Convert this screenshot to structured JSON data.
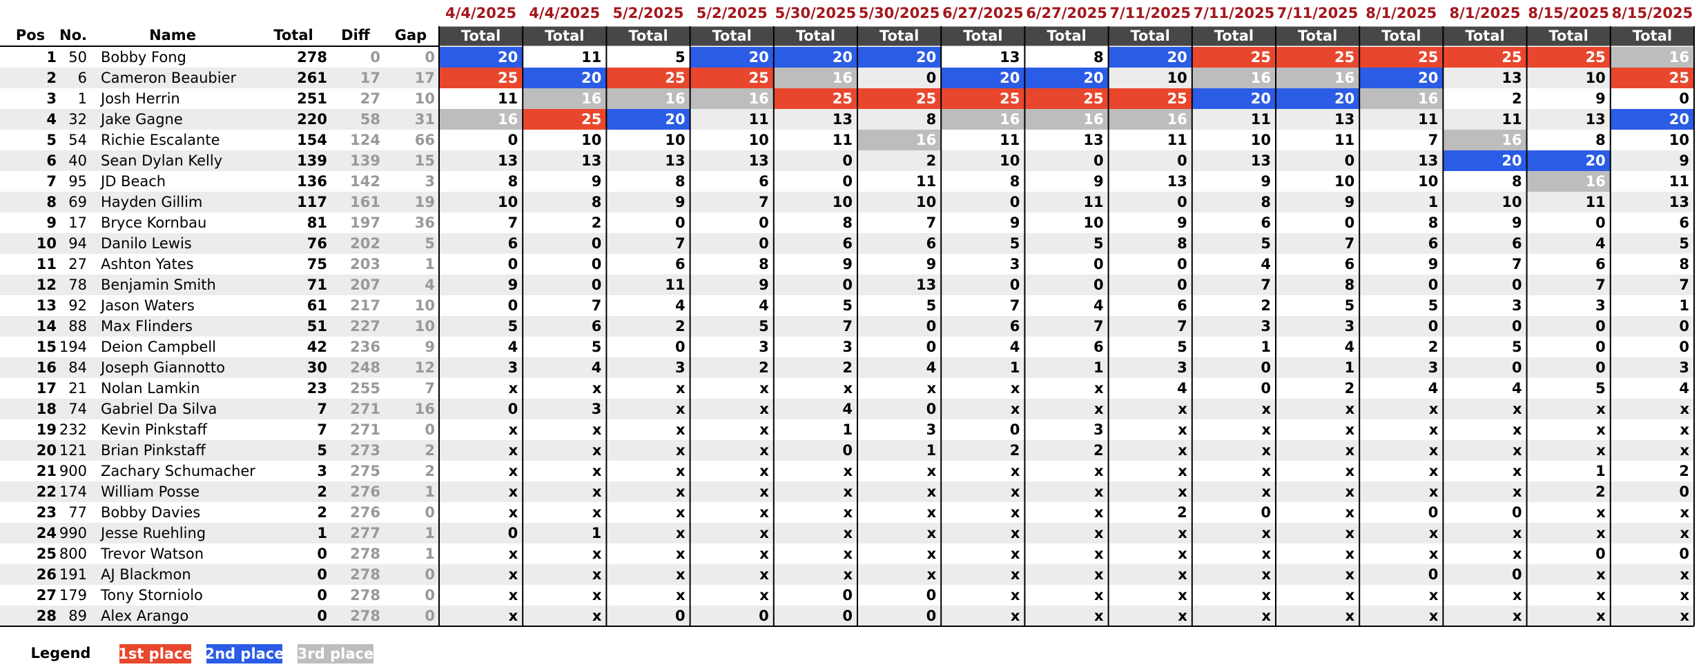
{
  "columns": {
    "pos": "Pos",
    "no": "No.",
    "name": "Name",
    "total": "Total",
    "diff": "Diff",
    "gap": "Gap"
  },
  "races": [
    {
      "date": "4/4/2025",
      "label": "Total"
    },
    {
      "date": "4/4/2025",
      "label": "Total"
    },
    {
      "date": "5/2/2025",
      "label": "Total"
    },
    {
      "date": "5/2/2025",
      "label": "Total"
    },
    {
      "date": "5/30/2025",
      "label": "Total"
    },
    {
      "date": "5/30/2025",
      "label": "Total"
    },
    {
      "date": "6/27/2025",
      "label": "Total"
    },
    {
      "date": "6/27/2025",
      "label": "Total"
    },
    {
      "date": "7/11/2025",
      "label": "Total"
    },
    {
      "date": "7/11/2025",
      "label": "Total"
    },
    {
      "date": "7/11/2025",
      "label": "Total"
    },
    {
      "date": "8/1/2025",
      "label": "Total"
    },
    {
      "date": "8/1/2025",
      "label": "Total"
    },
    {
      "date": "8/15/2025",
      "label": "Total"
    },
    {
      "date": "8/15/2025",
      "label": "Total"
    }
  ],
  "rows": [
    {
      "pos": 1,
      "no": 50,
      "name": "Bobby Fong",
      "total": 278,
      "diff": 0,
      "gap": 0,
      "results": [
        {
          "value": 20,
          "legend": 1
        },
        11,
        5,
        {
          "value": 20,
          "legend": 1
        },
        {
          "value": 20,
          "legend": 1
        },
        {
          "value": 20,
          "legend": 1
        },
        13,
        8,
        {
          "value": 20,
          "legend": 1
        },
        {
          "value": 25,
          "legend": 0
        },
        {
          "value": 25,
          "legend": 0
        },
        {
          "value": 25,
          "legend": 0
        },
        {
          "value": 25,
          "legend": 0
        },
        {
          "value": 25,
          "legend": 0
        },
        {
          "value": 16,
          "legend": 2
        }
      ]
    },
    {
      "pos": 2,
      "no": 6,
      "name": "Cameron Beaubier",
      "total": 261,
      "diff": 17,
      "gap": 17,
      "results": [
        {
          "value": 25,
          "legend": 0
        },
        {
          "value": 20,
          "legend": 1
        },
        {
          "value": 25,
          "legend": 0
        },
        {
          "value": 25,
          "legend": 0
        },
        {
          "value": 16,
          "legend": 2
        },
        0,
        {
          "value": 20,
          "legend": 1
        },
        {
          "value": 20,
          "legend": 1
        },
        10,
        {
          "value": 16,
          "legend": 2
        },
        {
          "value": 16,
          "legend": 2
        },
        {
          "value": 20,
          "legend": 1
        },
        13,
        10,
        {
          "value": 25,
          "legend": 0
        }
      ]
    },
    {
      "pos": 3,
      "no": 1,
      "name": "Josh Herrin",
      "total": 251,
      "diff": 27,
      "gap": 10,
      "results": [
        11,
        {
          "value": 16,
          "legend": 2
        },
        {
          "value": 16,
          "legend": 2
        },
        {
          "value": 16,
          "legend": 2
        },
        {
          "value": 25,
          "legend": 0
        },
        {
          "value": 25,
          "legend": 0
        },
        {
          "value": 25,
          "legend": 0
        },
        {
          "value": 25,
          "legend": 0
        },
        {
          "value": 25,
          "legend": 0
        },
        {
          "value": 20,
          "legend": 1
        },
        {
          "value": 20,
          "legend": 1
        },
        {
          "value": 16,
          "legend": 2
        },
        2,
        9,
        0
      ]
    },
    {
      "pos": 4,
      "no": 32,
      "name": "Jake Gagne",
      "total": 220,
      "diff": 58,
      "gap": 31,
      "results": [
        {
          "value": 16,
          "legend": 2
        },
        {
          "value": 25,
          "legend": 0
        },
        {
          "value": 20,
          "legend": 1
        },
        11,
        13,
        8,
        {
          "value": 16,
          "legend": 2
        },
        {
          "value": 16,
          "legend": 2
        },
        {
          "value": 16,
          "legend": 2
        },
        11,
        13,
        11,
        11,
        13,
        {
          "value": 20,
          "legend": 1
        }
      ]
    },
    {
      "pos": 5,
      "no": 54,
      "name": "Richie Escalante",
      "total": 154,
      "diff": 124,
      "gap": 66,
      "results": [
        0,
        10,
        10,
        10,
        11,
        {
          "value": 16,
          "legend": 2
        },
        11,
        13,
        11,
        10,
        11,
        7,
        {
          "value": 16,
          "legend": 2
        },
        8,
        10
      ]
    },
    {
      "pos": 6,
      "no": 40,
      "name": "Sean Dylan Kelly",
      "total": 139,
      "diff": 139,
      "gap": 15,
      "results": [
        13,
        13,
        13,
        13,
        0,
        2,
        10,
        0,
        0,
        13,
        0,
        13,
        {
          "value": 20,
          "legend": 1
        },
        {
          "value": 20,
          "legend": 1
        },
        9
      ]
    },
    {
      "pos": 7,
      "no": 95,
      "name": "JD Beach",
      "total": 136,
      "diff": 142,
      "gap": 3,
      "results": [
        8,
        9,
        8,
        6,
        0,
        11,
        8,
        9,
        13,
        9,
        10,
        10,
        8,
        {
          "value": 16,
          "legend": 2
        },
        11
      ]
    },
    {
      "pos": 8,
      "no": 69,
      "name": "Hayden Gillim",
      "total": 117,
      "diff": 161,
      "gap": 19,
      "results": [
        10,
        8,
        9,
        7,
        10,
        10,
        0,
        11,
        0,
        8,
        9,
        1,
        10,
        11,
        13
      ]
    },
    {
      "pos": 9,
      "no": 17,
      "name": "Bryce Kornbau",
      "total": 81,
      "diff": 197,
      "gap": 36,
      "results": [
        7,
        2,
        0,
        0,
        8,
        7,
        9,
        10,
        9,
        6,
        0,
        8,
        9,
        0,
        6
      ]
    },
    {
      "pos": 10,
      "no": 94,
      "name": "Danilo Lewis",
      "total": 76,
      "diff": 202,
      "gap": 5,
      "results": [
        6,
        0,
        7,
        0,
        6,
        6,
        5,
        5,
        8,
        5,
        7,
        6,
        6,
        4,
        5
      ]
    },
    {
      "pos": 11,
      "no": 27,
      "name": "Ashton Yates",
      "total": 75,
      "diff": 203,
      "gap": 1,
      "results": [
        0,
        0,
        6,
        8,
        9,
        9,
        3,
        0,
        0,
        4,
        6,
        9,
        7,
        6,
        8
      ]
    },
    {
      "pos": 12,
      "no": 78,
      "name": "Benjamin Smith",
      "total": 71,
      "diff": 207,
      "gap": 4,
      "results": [
        9,
        0,
        11,
        9,
        0,
        13,
        0,
        0,
        0,
        7,
        8,
        0,
        0,
        7,
        7
      ]
    },
    {
      "pos": 13,
      "no": 92,
      "name": "Jason Waters",
      "total": 61,
      "diff": 217,
      "gap": 10,
      "results": [
        0,
        7,
        4,
        4,
        5,
        5,
        7,
        4,
        6,
        2,
        5,
        5,
        3,
        3,
        1
      ]
    },
    {
      "pos": 14,
      "no": 88,
      "name": "Max Flinders",
      "total": 51,
      "diff": 227,
      "gap": 10,
      "results": [
        5,
        6,
        2,
        5,
        7,
        0,
        6,
        7,
        7,
        3,
        3,
        0,
        0,
        0,
        0
      ]
    },
    {
      "pos": 15,
      "no": 194,
      "name": "Deion Campbell",
      "total": 42,
      "diff": 236,
      "gap": 9,
      "results": [
        4,
        5,
        0,
        3,
        3,
        0,
        4,
        6,
        5,
        1,
        4,
        2,
        5,
        0,
        0
      ]
    },
    {
      "pos": 16,
      "no": 84,
      "name": "Joseph Giannotto",
      "total": 30,
      "diff": 248,
      "gap": 12,
      "results": [
        3,
        4,
        3,
        2,
        2,
        4,
        1,
        1,
        3,
        0,
        1,
        3,
        0,
        0,
        3
      ]
    },
    {
      "pos": 17,
      "no": 21,
      "name": "Nolan Lamkin",
      "total": 23,
      "diff": 255,
      "gap": 7,
      "results": [
        "x",
        "x",
        "x",
        "x",
        "x",
        "x",
        "x",
        "x",
        4,
        0,
        2,
        4,
        4,
        5,
        4
      ]
    },
    {
      "pos": 18,
      "no": 74,
      "name": "Gabriel Da Silva",
      "total": 7,
      "diff": 271,
      "gap": 16,
      "results": [
        0,
        3,
        "x",
        "x",
        4,
        0,
        "x",
        "x",
        "x",
        "x",
        "x",
        "x",
        "x",
        "x",
        "x"
      ]
    },
    {
      "pos": 19,
      "no": 232,
      "name": "Kevin Pinkstaff",
      "total": 7,
      "diff": 271,
      "gap": 0,
      "results": [
        "x",
        "x",
        "x",
        "x",
        1,
        3,
        0,
        3,
        "x",
        "x",
        "x",
        "x",
        "x",
        "x",
        "x"
      ]
    },
    {
      "pos": 20,
      "no": 121,
      "name": "Brian Pinkstaff",
      "total": 5,
      "diff": 273,
      "gap": 2,
      "results": [
        "x",
        "x",
        "x",
        "x",
        0,
        1,
        2,
        2,
        "x",
        "x",
        "x",
        "x",
        "x",
        "x",
        "x"
      ]
    },
    {
      "pos": 21,
      "no": 900,
      "name": "Zachary Schumacher",
      "total": 3,
      "diff": 275,
      "gap": 2,
      "results": [
        "x",
        "x",
        "x",
        "x",
        "x",
        "x",
        "x",
        "x",
        "x",
        "x",
        "x",
        "x",
        "x",
        1,
        2
      ]
    },
    {
      "pos": 22,
      "no": 174,
      "name": "William Posse",
      "total": 2,
      "diff": 276,
      "gap": 1,
      "results": [
        "x",
        "x",
        "x",
        "x",
        "x",
        "x",
        "x",
        "x",
        "x",
        "x",
        "x",
        "x",
        "x",
        2,
        0
      ]
    },
    {
      "pos": 23,
      "no": 77,
      "name": "Bobby Davies",
      "total": 2,
      "diff": 276,
      "gap": 0,
      "results": [
        "x",
        "x",
        "x",
        "x",
        "x",
        "x",
        "x",
        "x",
        2,
        0,
        "x",
        0,
        0,
        "x",
        "x"
      ]
    },
    {
      "pos": 24,
      "no": 990,
      "name": "Jesse Ruehling",
      "total": 1,
      "diff": 277,
      "gap": 1,
      "results": [
        0,
        1,
        "x",
        "x",
        "x",
        "x",
        "x",
        "x",
        "x",
        "x",
        "x",
        "x",
        "x",
        "x",
        "x"
      ]
    },
    {
      "pos": 25,
      "no": 800,
      "name": "Trevor Watson",
      "total": 0,
      "diff": 278,
      "gap": 1,
      "results": [
        "x",
        "x",
        "x",
        "x",
        "x",
        "x",
        "x",
        "x",
        "x",
        "x",
        "x",
        "x",
        "x",
        0,
        0
      ]
    },
    {
      "pos": 26,
      "no": 191,
      "name": "AJ Blackmon",
      "total": 0,
      "diff": 278,
      "gap": 0,
      "results": [
        "x",
        "x",
        "x",
        "x",
        "x",
        "x",
        "x",
        "x",
        "x",
        "x",
        "x",
        0,
        0,
        "x",
        "x"
      ]
    },
    {
      "pos": 27,
      "no": 179,
      "name": "Tony Storniolo",
      "total": 0,
      "diff": 278,
      "gap": 0,
      "results": [
        "x",
        "x",
        "x",
        "x",
        0,
        0,
        "x",
        "x",
        "x",
        "x",
        "x",
        "x",
        "x",
        "x",
        "x"
      ]
    },
    {
      "pos": 28,
      "no": 89,
      "name": "Alex Arango",
      "total": 0,
      "diff": 278,
      "gap": 0,
      "results": [
        "x",
        "x",
        0,
        0,
        0,
        0,
        "x",
        "x",
        "x",
        "x",
        "x",
        "x",
        "x",
        "x",
        "x"
      ]
    }
  ],
  "legend": {
    "title": "Legend",
    "items": [
      {
        "label": "1st place",
        "color": "#e8472d"
      },
      {
        "label": "2nd place",
        "color": "#2b5ce6"
      },
      {
        "label": "3rd place",
        "color": "#bdbdbd"
      }
    ]
  }
}
